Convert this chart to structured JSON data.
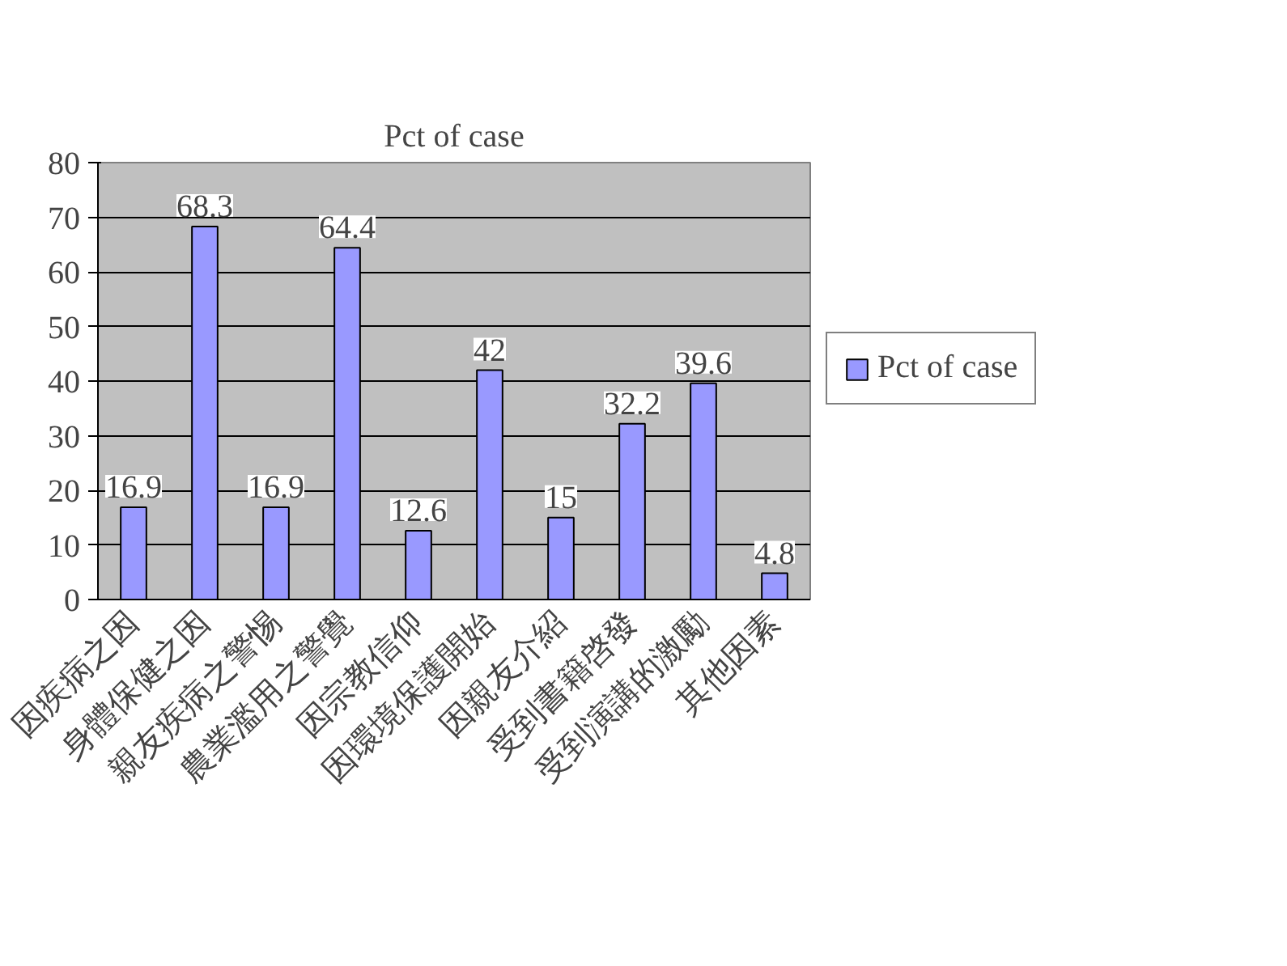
{
  "chart_data": {
    "type": "bar",
    "title": "Pct of case",
    "categories": [
      "因疾病之因",
      "身體保健之因",
      "親友疾病之警惕",
      "農業濫用之警覺",
      "因宗教信仰",
      "因環境保護開始",
      "因親友介紹",
      "受到書籍啓發",
      "受到演講的激勵",
      "其他因素"
    ],
    "series": [
      {
        "name": "Pct of case",
        "color": "#9999ff",
        "values": [
          16.9,
          68.3,
          16.9,
          64.4,
          12.6,
          42,
          15,
          32.2,
          39.6,
          4.8
        ]
      }
    ],
    "ylim": [
      0,
      80
    ],
    "yticks": [
      0,
      10,
      20,
      30,
      40,
      50,
      60,
      70,
      80
    ],
    "grid": "y",
    "legend": "right",
    "data_labels": true
  }
}
